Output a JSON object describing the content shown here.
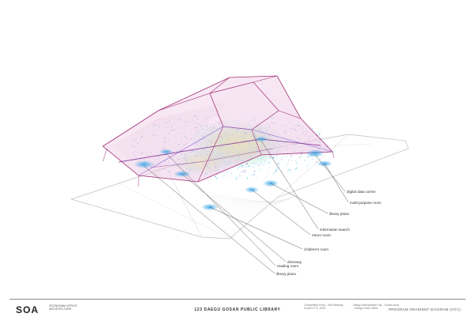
{
  "labels": [
    "digital data corner",
    "multi-purpose room",
    "library plaza",
    "information search",
    "return room",
    "children's room",
    "driveway",
    "reading room",
    "library plaza"
  ],
  "colors": {
    "roof_fill": "#f2d4ea",
    "roof_stroke": "#a02c74",
    "base_stroke": "#bdbdbd",
    "cyan_stipple": "#35c6ee",
    "violet_stipple": "#8a6cd8",
    "yellow_green_glow": "#d9f27a",
    "blue_node": "#3aa6e6",
    "leader_line": "#4a4a4a"
  },
  "footer": {
    "logo": "SOA",
    "logo_sub": "seongnam office architecture",
    "title": "123 DAEGU GOSAN PUBLIC LIBRARY",
    "note_1": "Competition Entry - Site Massing - Scale N.T.S. 2010",
    "note_2": "Daegu Metropolitan City - Gosan-dong - Design Team Office",
    "sheet_title": "PROGRAM GRADIENT DIAGRAM (VIT1)"
  }
}
